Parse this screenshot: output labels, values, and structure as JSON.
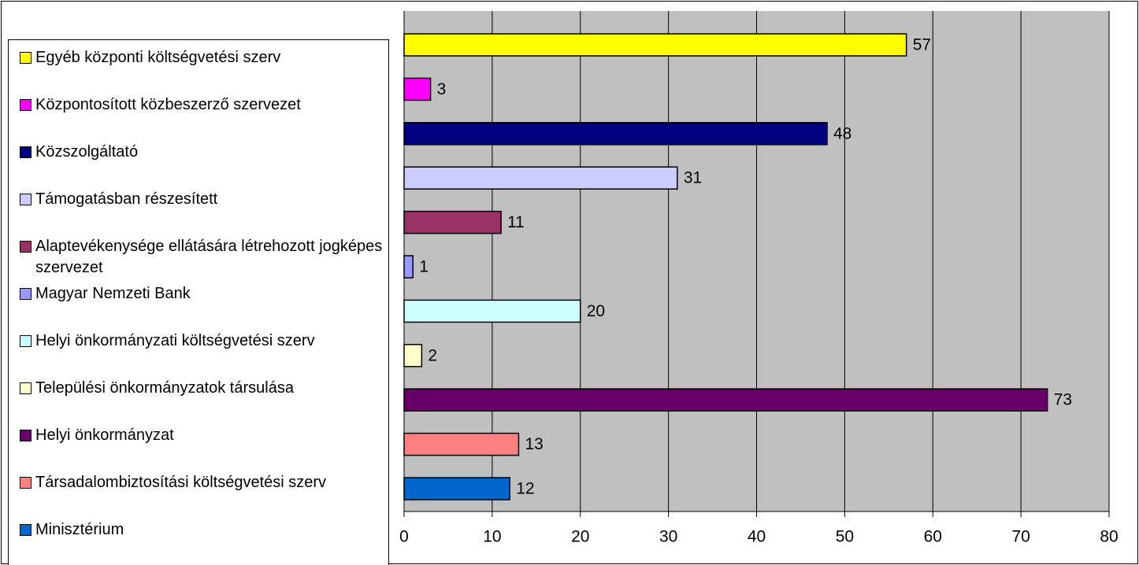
{
  "chart_data": {
    "type": "bar",
    "orientation": "horizontal",
    "categories": [
      "Egyéb központi költségvetési szerv",
      "Központosított közbeszerző szervezet",
      "Közszolgáltató",
      "Támogatásban részesített",
      "Alaptevékenysége ellátására létrehozott jogképes szervezet",
      "Magyar Nemzeti Bank",
      "Helyi önkormányzati költségvetési szerv",
      "Települési önkormányzatok társulása",
      "Helyi önkormányzat",
      "Társadalombiztosítási költségvetési szerv",
      "Minisztérium"
    ],
    "values": [
      57,
      3,
      48,
      31,
      11,
      1,
      20,
      2,
      73,
      13,
      12
    ],
    "colors": [
      "#ffff00",
      "#ff00ff",
      "#000080",
      "#ccccff",
      "#993366",
      "#9999ff",
      "#ccffff",
      "#ffffcc",
      "#660066",
      "#ff8080",
      "#0066cc"
    ],
    "xlim": [
      0,
      80
    ],
    "xticks": [
      0,
      10,
      20,
      30,
      40,
      50,
      60,
      70,
      80
    ],
    "grid": true,
    "legend": "left"
  }
}
